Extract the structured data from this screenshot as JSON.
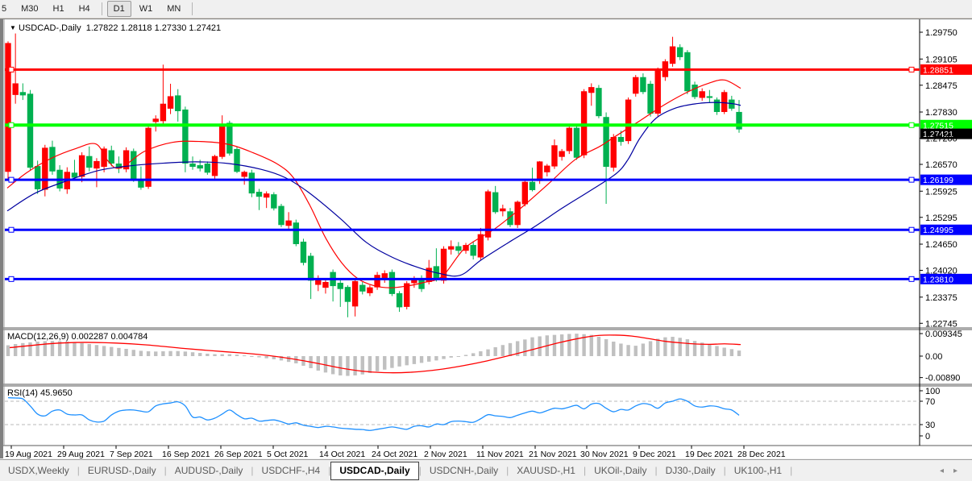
{
  "toolbar": {
    "timeframes": [
      {
        "label": "5",
        "active": false,
        "partial": true
      },
      {
        "label": "M30",
        "active": false
      },
      {
        "label": "H1",
        "active": false
      },
      {
        "label": "H4",
        "active": false
      },
      {
        "label": "D1",
        "active": true
      },
      {
        "label": "W1",
        "active": false
      },
      {
        "label": "MN",
        "active": false
      }
    ]
  },
  "chart_header": {
    "dropdown_icon": "▼",
    "symbol": "USDCAD-,Daily",
    "open": "1.27822",
    "high": "1.28118",
    "low": "1.27330",
    "close": "1.27421"
  },
  "indicators": {
    "macd_name": "MACD(12,26,9)",
    "macd_value": "0.002287",
    "macd_signal_value": "0.004784",
    "rsi_name": "RSI(14)",
    "rsi_value": "45.9650"
  },
  "tabs": {
    "items": [
      "USDX,Weekly",
      "EURUSD-,Daily",
      "AUDUSD-,Daily",
      "USDCHF-,H4",
      "USDCAD-,Daily",
      "USDCNH-,Daily",
      "XAUUSD-,H1",
      "UKOil-,Daily",
      "DJ30-,Daily",
      "UK100-,H1"
    ],
    "active_index": 4,
    "left_arrow": "◂",
    "right_arrow": "▸"
  },
  "colors": {
    "bull_candle": "#FF0000",
    "bear_candle": "#00B050",
    "hline_red": "#FF0000",
    "hline_green": "#00FF00",
    "hline_blue": "#0000FF",
    "ma_fast": "#FF0000",
    "ma_slow": "#0000A0",
    "macd_hist": "#C0C0C0",
    "macd_signal": "#FF0000",
    "rsi_line": "#1E90FF",
    "current_price_bg": "#000000",
    "axis_text": "#000000"
  },
  "chart_data": {
    "type": "candlestick",
    "title": "USDCAD-,Daily",
    "ohlc_display": [
      "1.27822",
      "1.28118",
      "1.27330",
      "1.27421"
    ],
    "price_axis_ticks": [
      "1.29750",
      "1.29105",
      "1.28475",
      "1.27830",
      "1.27200",
      "1.26570",
      "1.25925",
      "1.25295",
      "1.24650",
      "1.24020",
      "1.23375",
      "1.22745"
    ],
    "date_axis_labels": [
      "19 Aug 2021",
      "29 Aug 2021",
      "7 Sep 2021",
      "16 Sep 2021",
      "26 Sep 2021",
      "5 Oct 2021",
      "14 Oct 2021",
      "24 Oct 2021",
      "2 Nov 2021",
      "11 Nov 2021",
      "21 Nov 2021",
      "30 Nov 2021",
      "9 Dec 2021",
      "19 Dec 2021",
      "28 Dec 2021"
    ],
    "date_axis_x": [
      10,
      75,
      140,
      205,
      270,
      335,
      400,
      465,
      530,
      595,
      660,
      724,
      789,
      854,
      919
    ],
    "hlines": [
      {
        "price": 1.28851,
        "label": "1.28851",
        "color": "#FF0000",
        "width": 3
      },
      {
        "price": 1.27515,
        "label": "1.27515",
        "color": "#00FF00",
        "width": 4
      },
      {
        "price": 1.26199,
        "label": "1.26199",
        "color": "#0000FF",
        "width": 3
      },
      {
        "price": 1.24995,
        "label": "1.24995",
        "color": "#0000FF",
        "width": 3
      },
      {
        "price": 1.2381,
        "label": "1.23810",
        "color": "#0000FF",
        "width": 3
      }
    ],
    "current_price": {
      "value": 1.27421,
      "label": "1.27421"
    },
    "candles": [
      [
        1.264,
        1.2953,
        1.2622,
        1.2948
      ],
      [
        1.2825,
        1.2972,
        1.2803,
        1.2851
      ],
      [
        1.283,
        1.2852,
        1.2812,
        1.2824
      ],
      [
        1.2826,
        1.2836,
        1.2642,
        1.265
      ],
      [
        1.2652,
        1.2666,
        1.2586,
        1.2598
      ],
      [
        1.2597,
        1.2704,
        1.258,
        1.2696
      ],
      [
        1.2698,
        1.2714,
        1.2632,
        1.2641
      ],
      [
        1.2643,
        1.2655,
        1.2592,
        1.26
      ],
      [
        1.2598,
        1.265,
        1.2586,
        1.2638
      ],
      [
        1.2636,
        1.2668,
        1.2618,
        1.2626
      ],
      [
        1.2628,
        1.2686,
        1.2614,
        1.2678
      ],
      [
        1.2676,
        1.27,
        1.264,
        1.265
      ],
      [
        1.2648,
        1.2672,
        1.2602,
        1.2664
      ],
      [
        1.2652,
        1.27,
        1.2638,
        1.2694
      ],
      [
        1.269,
        1.2702,
        1.2652,
        1.266
      ],
      [
        1.2658,
        1.2676,
        1.2636,
        1.2648
      ],
      [
        1.2646,
        1.2698,
        1.2638,
        1.269
      ],
      [
        1.2688,
        1.2695,
        1.2615,
        1.2622
      ],
      [
        1.262,
        1.2652,
        1.2596,
        1.2602
      ],
      [
        1.2604,
        1.275,
        1.2598,
        1.2744
      ],
      [
        1.276,
        1.2775,
        1.2736,
        1.2766
      ],
      [
        1.2762,
        1.2897,
        1.275,
        1.2802
      ],
      [
        1.2792,
        1.2851,
        1.2778,
        1.282
      ],
      [
        1.2822,
        1.2838,
        1.276,
        1.2786
      ],
      [
        1.2788,
        1.2796,
        1.2638,
        1.266
      ],
      [
        1.2658,
        1.2676,
        1.2644,
        1.2652
      ],
      [
        1.2654,
        1.2668,
        1.264,
        1.2648
      ],
      [
        1.2658,
        1.2664,
        1.2632,
        1.2638
      ],
      [
        1.263,
        1.268,
        1.2622,
        1.2676
      ],
      [
        1.2676,
        1.2775,
        1.267,
        1.2754
      ],
      [
        1.2756,
        1.2762,
        1.2678,
        1.2684
      ],
      [
        1.2693,
        1.27,
        1.2636,
        1.264
      ],
      [
        1.2628,
        1.2642,
        1.2608,
        1.2638
      ],
      [
        1.2636,
        1.2644,
        1.2578,
        1.2588
      ],
      [
        1.259,
        1.2598,
        1.2547,
        1.258
      ],
      [
        1.2578,
        1.2592,
        1.2552,
        1.2586
      ],
      [
        1.2584,
        1.259,
        1.2546,
        1.2552
      ],
      [
        1.2556,
        1.2562,
        1.2506,
        1.2512
      ],
      [
        1.251,
        1.2542,
        1.2502,
        1.2521
      ],
      [
        1.2516,
        1.2524,
        1.246,
        1.2466
      ],
      [
        1.247,
        1.2478,
        1.2414,
        1.2421
      ],
      [
        1.2436,
        1.2444,
        1.2333,
        1.2378
      ],
      [
        1.2368,
        1.239,
        1.2352,
        1.2381
      ],
      [
        1.2361,
        1.2382,
        1.2346,
        1.2373
      ],
      [
        1.2397,
        1.2404,
        1.2327,
        1.2365
      ],
      [
        1.2371,
        1.2378,
        1.2314,
        1.2358
      ],
      [
        1.2361,
        1.2366,
        1.2289,
        1.2327
      ],
      [
        1.2316,
        1.2382,
        1.2291,
        1.2375
      ],
      [
        1.2366,
        1.2374,
        1.2344,
        1.2352
      ],
      [
        1.2348,
        1.2366,
        1.234,
        1.236
      ],
      [
        1.2362,
        1.2398,
        1.2355,
        1.239
      ],
      [
        1.238,
        1.2402,
        1.2372,
        1.2394
      ],
      [
        1.2397,
        1.2404,
        1.234,
        1.2346
      ],
      [
        1.2346,
        1.2352,
        1.2302,
        1.2314
      ],
      [
        1.2315,
        1.2376,
        1.2308,
        1.237
      ],
      [
        1.2372,
        1.2388,
        1.236,
        1.238
      ],
      [
        1.2381,
        1.239,
        1.235,
        1.2358
      ],
      [
        1.2375,
        1.2427,
        1.2368,
        1.2407
      ],
      [
        1.2411,
        1.2455,
        1.2375,
        1.2381
      ],
      [
        1.2378,
        1.246,
        1.237,
        1.2453
      ],
      [
        1.2453,
        1.2474,
        1.244,
        1.2459
      ],
      [
        1.2459,
        1.247,
        1.2441,
        1.245
      ],
      [
        1.245,
        1.2468,
        1.2442,
        1.2462
      ],
      [
        1.2462,
        1.2472,
        1.2428,
        1.2438
      ],
      [
        1.2434,
        1.2504,
        1.2427,
        1.2488
      ],
      [
        1.2482,
        1.2596,
        1.2474,
        1.2591
      ],
      [
        1.2589,
        1.2605,
        1.2538,
        1.2543
      ],
      [
        1.2545,
        1.256,
        1.2532,
        1.255
      ],
      [
        1.2543,
        1.2552,
        1.2506,
        1.2512
      ],
      [
        1.2512,
        1.257,
        1.2504,
        1.2566
      ],
      [
        1.2562,
        1.262,
        1.2556,
        1.2614
      ],
      [
        1.2614,
        1.2649,
        1.2592,
        1.2596
      ],
      [
        1.2618,
        1.2665,
        1.261,
        1.2663
      ],
      [
        1.2639,
        1.2658,
        1.2628,
        1.2653
      ],
      [
        1.2653,
        1.2717,
        1.2646,
        1.2702
      ],
      [
        1.2676,
        1.2694,
        1.2666,
        1.2688
      ],
      [
        1.269,
        1.2748,
        1.2682,
        1.2744
      ],
      [
        1.2744,
        1.2752,
        1.2668,
        1.2674
      ],
      [
        1.268,
        1.2838,
        1.2672,
        1.2832
      ],
      [
        1.283,
        1.2852,
        1.2798,
        1.2842
      ],
      [
        1.284,
        1.2848,
        1.2768,
        1.2774
      ],
      [
        1.277,
        1.2782,
        1.2562,
        1.2652
      ],
      [
        1.265,
        1.273,
        1.264,
        1.2722
      ],
      [
        1.2722,
        1.2738,
        1.2702,
        1.2712
      ],
      [
        1.2714,
        1.2818,
        1.2706,
        1.2812
      ],
      [
        1.2828,
        1.2872,
        1.282,
        1.2866
      ],
      [
        1.2866,
        1.2876,
        1.2826,
        1.2832
      ],
      [
        1.285,
        1.2858,
        1.2772,
        1.278
      ],
      [
        1.278,
        1.289,
        1.2772,
        1.2886
      ],
      [
        1.2868,
        1.291,
        1.2858,
        1.2904
      ],
      [
        1.29,
        1.2964,
        1.2892,
        1.294
      ],
      [
        1.2938,
        1.2946,
        1.2908,
        1.2916
      ],
      [
        1.2926,
        1.2932,
        1.2826,
        1.2834
      ],
      [
        1.2848,
        1.2856,
        1.2814,
        1.282
      ],
      [
        1.2818,
        1.284,
        1.281,
        1.2832
      ],
      [
        1.282,
        1.2836,
        1.2806,
        1.2818
      ],
      [
        1.2812,
        1.2818,
        1.2776,
        1.2784
      ],
      [
        1.2784,
        1.2836,
        1.2778,
        1.283
      ],
      [
        1.2812,
        1.2822,
        1.2786,
        1.2792
      ],
      [
        1.27822,
        1.28118,
        1.2733,
        1.27421
      ]
    ],
    "ma_fast_points": [
      [
        5,
        1.26
      ],
      [
        30,
        1.2638
      ],
      [
        60,
        1.2672
      ],
      [
        90,
        1.2695
      ],
      [
        115,
        1.2706
      ],
      [
        130,
        1.2665
      ],
      [
        145,
        1.2648
      ],
      [
        175,
        1.2688
      ],
      [
        210,
        1.271
      ],
      [
        245,
        1.2712
      ],
      [
        280,
        1.2705
      ],
      [
        310,
        1.2685
      ],
      [
        340,
        1.2658
      ],
      [
        360,
        1.2625
      ],
      [
        380,
        1.256
      ],
      [
        400,
        1.248
      ],
      [
        420,
        1.242
      ],
      [
        440,
        1.2382
      ],
      [
        460,
        1.2365
      ],
      [
        480,
        1.236
      ],
      [
        500,
        1.2364
      ],
      [
        520,
        1.2372
      ],
      [
        545,
        1.2388
      ],
      [
        573,
        1.2456
      ],
      [
        610,
        1.2502
      ],
      [
        643,
        1.2553
      ],
      [
        677,
        1.2611
      ],
      [
        710,
        1.2669
      ],
      [
        740,
        1.27
      ],
      [
        760,
        1.2725
      ],
      [
        790,
        1.2762
      ],
      [
        820,
        1.28
      ],
      [
        850,
        1.2832
      ],
      [
        875,
        1.2852
      ],
      [
        895,
        1.286
      ],
      [
        915,
        1.284
      ]
    ],
    "ma_slow_points": [
      [
        5,
        1.2545
      ],
      [
        40,
        1.2588
      ],
      [
        80,
        1.2618
      ],
      [
        120,
        1.2643
      ],
      [
        160,
        1.2654
      ],
      [
        200,
        1.266
      ],
      [
        240,
        1.2663
      ],
      [
        280,
        1.2659
      ],
      [
        320,
        1.2645
      ],
      [
        350,
        1.2625
      ],
      [
        380,
        1.2588
      ],
      [
        418,
        1.2527
      ],
      [
        450,
        1.247
      ],
      [
        480,
        1.2436
      ],
      [
        510,
        1.2412
      ],
      [
        540,
        1.2395
      ],
      [
        567,
        1.239
      ],
      [
        593,
        1.2427
      ],
      [
        627,
        1.2469
      ],
      [
        660,
        1.2508
      ],
      [
        693,
        1.2551
      ],
      [
        727,
        1.2592
      ],
      [
        760,
        1.2634
      ],
      [
        775,
        1.2668
      ],
      [
        790,
        1.272
      ],
      [
        810,
        1.2768
      ],
      [
        835,
        1.2793
      ],
      [
        860,
        1.2803
      ],
      [
        885,
        1.2806
      ],
      [
        905,
        1.2803
      ],
      [
        915,
        1.2799
      ]
    ],
    "macd": {
      "name": "MACD(12,26,9)",
      "value": 0.002287,
      "signal": 0.004784,
      "axis_ticks": [
        {
          "label": "0.009345",
          "v": 0.009345
        },
        {
          "label": "0.00",
          "v": 0
        },
        {
          "label": "-0.00890",
          "v": -0.0089
        }
      ],
      "histogram": [
        0.0045,
        0.005,
        0.0054,
        0.0057,
        0.006,
        0.0062,
        0.0063,
        0.0062,
        0.006,
        0.0057,
        0.0054,
        0.005,
        0.0046,
        0.0042,
        0.0038,
        0.0034,
        0.003,
        0.0026,
        0.0022,
        0.002,
        0.0019,
        0.002,
        0.0021,
        0.0021,
        0.0019,
        0.0016,
        0.0013,
        0.001,
        0.0008,
        0.0008,
        0.0008,
        0.0006,
        0.0003,
        -0.0001,
        -0.0005,
        -0.0009,
        -0.0013,
        -0.0018,
        -0.0024,
        -0.003,
        -0.004,
        -0.005,
        -0.006,
        -0.0068,
        -0.0075,
        -0.008,
        -0.0082,
        -0.008,
        -0.0076,
        -0.007,
        -0.0063,
        -0.0056,
        -0.0049,
        -0.0043,
        -0.0038,
        -0.0033,
        -0.0028,
        -0.0023,
        -0.0018,
        -0.0012,
        -0.0006,
        0.0,
        0.0005,
        0.0012,
        0.002,
        0.0028,
        0.0037,
        0.0046,
        0.0054,
        0.0062,
        0.0069,
        0.0078,
        0.0082,
        0.0086,
        0.0088,
        0.009,
        0.0092,
        0.0093,
        0.0091,
        0.0088,
        0.008,
        0.007,
        0.006,
        0.0052,
        0.0046,
        0.0043,
        0.0052,
        0.0062,
        0.0072,
        0.0078,
        0.008,
        0.0076,
        0.007,
        0.0063,
        0.0056,
        0.0049,
        0.0042,
        0.0035,
        0.0029,
        0.0023
      ],
      "signal_points": [
        [
          8,
          0.0035
        ],
        [
          60,
          0.0052
        ],
        [
          100,
          0.0057
        ],
        [
          140,
          0.0054
        ],
        [
          180,
          0.0046
        ],
        [
          220,
          0.0033
        ],
        [
          260,
          0.0022
        ],
        [
          300,
          0.0012
        ],
        [
          330,
          0.0002
        ],
        [
          360,
          -0.0012
        ],
        [
          390,
          -0.003
        ],
        [
          420,
          -0.005
        ],
        [
          450,
          -0.0064
        ],
        [
          480,
          -0.0069
        ],
        [
          510,
          -0.0066
        ],
        [
          540,
          -0.0056
        ],
        [
          570,
          -0.004
        ],
        [
          600,
          -0.002
        ],
        [
          630,
          0.0004
        ],
        [
          660,
          0.003
        ],
        [
          690,
          0.0056
        ],
        [
          720,
          0.0077
        ],
        [
          740,
          0.0086
        ],
        [
          760,
          0.0087
        ],
        [
          780,
          0.0083
        ],
        [
          800,
          0.0073
        ],
        [
          820,
          0.0062
        ],
        [
          840,
          0.0055
        ],
        [
          860,
          0.005
        ],
        [
          880,
          0.0049
        ],
        [
          895,
          0.0051
        ],
        [
          915,
          0.0048
        ]
      ]
    },
    "rsi": {
      "name": "RSI(14)",
      "value": 45.965,
      "axis_ticks": [
        {
          "label": "100",
          "v": 100
        },
        {
          "label": "70",
          "v": 70
        },
        {
          "label": "30",
          "v": 30
        },
        {
          "label": "0",
          "v": 0
        }
      ],
      "overbought": 70,
      "oversold": 30,
      "values": [
        76,
        75.5,
        74,
        62,
        48,
        45,
        53,
        55,
        48,
        46.5,
        46.5,
        38,
        34.5,
        36,
        46.5,
        53,
        55,
        55,
        53,
        52,
        62,
        65.5,
        67,
        69,
        62,
        43,
        43,
        38,
        41,
        48,
        55,
        47,
        40,
        41,
        36,
        37,
        38,
        35,
        31,
        33,
        29,
        27,
        25,
        27,
        26,
        24,
        23,
        22,
        21.5,
        20,
        22,
        24,
        26,
        24,
        22,
        27,
        28,
        26,
        31,
        30,
        35,
        36,
        35,
        34,
        40,
        47,
        45,
        44,
        42,
        46,
        50,
        53,
        50,
        54,
        58,
        57,
        60,
        63,
        57,
        65,
        66,
        58,
        52,
        56,
        55,
        62,
        66,
        64,
        58,
        67,
        70,
        74,
        70,
        62,
        60,
        62,
        61,
        57,
        55,
        45.965
      ]
    }
  }
}
